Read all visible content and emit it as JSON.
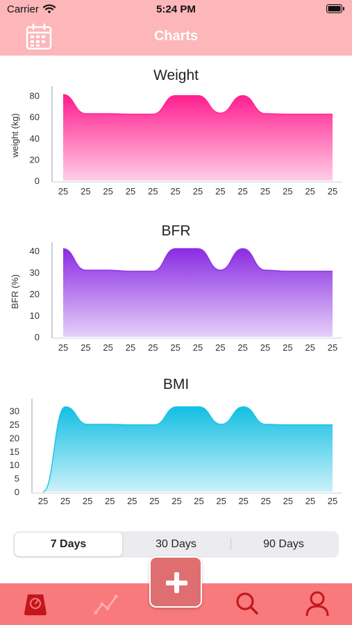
{
  "status_bar": {
    "carrier": "Carrier",
    "time": "5:24 PM"
  },
  "nav": {
    "title": "Charts",
    "calendar_icon": "calendar-icon"
  },
  "chart_data": [
    {
      "type": "area",
      "title": "Weight",
      "ylabel": "weight (kg)",
      "xlabel": "",
      "x": [
        "25",
        "25",
        "25",
        "25",
        "25",
        "25",
        "25",
        "25",
        "25",
        "25",
        "25",
        "25",
        "25"
      ],
      "ylim": [
        0,
        85
      ],
      "yticks": [
        0,
        20,
        40,
        60,
        80
      ],
      "values": [
        81,
        63,
        63,
        62.5,
        62.5,
        80,
        80,
        63.5,
        80,
        63,
        62.5,
        62.5,
        62.5
      ],
      "color": "#ff1d8e"
    },
    {
      "type": "area",
      "title": "BFR",
      "ylabel": "BFR (%)",
      "xlabel": "",
      "x": [
        "25",
        "25",
        "25",
        "25",
        "25",
        "25",
        "25",
        "25",
        "25",
        "25",
        "25",
        "25",
        "25"
      ],
      "ylim": [
        0,
        42
      ],
      "yticks": [
        0,
        10,
        20,
        30,
        40
      ],
      "values": [
        41,
        31,
        31,
        30.5,
        30.5,
        41,
        41,
        31,
        41,
        31,
        30.5,
        30.5,
        30.5
      ],
      "color": "#8a2be2"
    },
    {
      "type": "area",
      "title": "BMI",
      "ylabel": "",
      "xlabel": "",
      "x": [
        "25",
        "25",
        "25",
        "25",
        "25",
        "25",
        "25",
        "25",
        "25",
        "25",
        "25",
        "25",
        "25",
        "25"
      ],
      "ylim": [
        0,
        33
      ],
      "yticks": [
        0,
        5,
        10,
        15,
        20,
        25,
        30
      ],
      "values": [
        0,
        31.5,
        25,
        25,
        24.8,
        24.8,
        31.5,
        31.5,
        25,
        31.5,
        25,
        24.8,
        24.8,
        24.8
      ],
      "color": "#12bfe3"
    }
  ],
  "segmented": {
    "options": [
      "7 Days",
      "30 Days",
      "90 Days"
    ],
    "selected": "7 Days"
  },
  "tab_bar": {
    "items": [
      {
        "icon": "scale-icon",
        "color": "#c4161c",
        "active": true
      },
      {
        "icon": "chart-line-icon",
        "color": "#fbb0b2",
        "active": false
      },
      {
        "icon": "search-icon",
        "color": "#c4161c",
        "active": false
      },
      {
        "icon": "profile-icon",
        "color": "#c4161c",
        "active": false
      }
    ],
    "add_icon": "plus-icon"
  },
  "colors": {
    "nav_bg": "#fdb6b9",
    "tab_bg": "#f87a7d",
    "add_button": "#df6e71"
  }
}
